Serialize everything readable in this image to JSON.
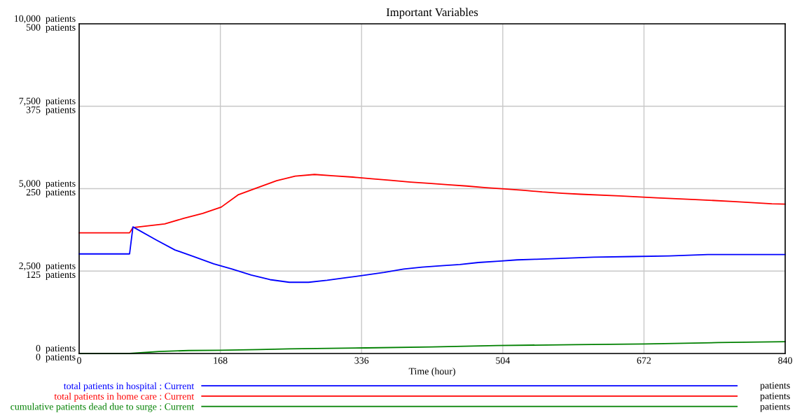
{
  "chart_data": {
    "type": "line",
    "title": "Important Variables",
    "xlabel": "Time (hour)",
    "xlim": [
      0,
      840
    ],
    "xticks": [
      0,
      168,
      336,
      504,
      672,
      840
    ],
    "ylim": [
      0,
      10000
    ],
    "yticks": [
      {
        "value": 0,
        "label": "0  patients"
      },
      {
        "value": 2500,
        "label": "2,500  patients"
      },
      {
        "value": 5000,
        "label": "5,000  patients"
      },
      {
        "value": 7500,
        "label": "7,500  patients"
      },
      {
        "value": 10000,
        "label": "10,000  patients"
      }
    ],
    "y2lim": [
      0,
      500
    ],
    "y2ticks": [
      {
        "value": 0,
        "label": "0  patients"
      },
      {
        "value": 125,
        "label": "125  patients"
      },
      {
        "value": 250,
        "label": "250  patients"
      },
      {
        "value": 375,
        "label": "375  patients"
      },
      {
        "value": 500,
        "label": "500  patients"
      }
    ],
    "grid": true,
    "legend": "bottom",
    "line_style": "solid",
    "annotations": [
      "patients",
      "patients",
      "patients"
    ],
    "series": [
      {
        "name": "total patients in hospital : Current",
        "color": "#0000ff",
        "axis": "y2",
        "x": [
          0,
          60,
          64,
          92,
          114,
          136.5,
          160,
          182,
          204.6,
          227,
          250,
          273,
          295,
          318,
          341,
          363,
          386,
          408,
          431,
          453,
          475,
          499,
          521,
          544,
          567,
          612,
          658,
          702,
          748,
          794,
          840
        ],
        "values": [
          151,
          151,
          192,
          172,
          157,
          147,
          136,
          128,
          119,
          112,
          108,
          108,
          111,
          115,
          119,
          123,
          128,
          131,
          133,
          135,
          138,
          140,
          142,
          143,
          144,
          146,
          147,
          148,
          150,
          150,
          150
        ]
      },
      {
        "name": "total patients in home care : Current",
        "color": "#ff0000",
        "axis": "y",
        "x": [
          0,
          60,
          64,
          101.8,
          124.5,
          147,
          169,
          189,
          211,
          235,
          257,
          280,
          302,
          325.6,
          348,
          371,
          394,
          416,
          438.6,
          461,
          484,
          506,
          529,
          551,
          575,
          597,
          643,
          687,
          733,
          778,
          824,
          840
        ],
        "values": [
          3660,
          3660,
          3820,
          3930,
          4100,
          4250,
          4440,
          4810,
          5020,
          5240,
          5380,
          5430,
          5390,
          5350,
          5300,
          5250,
          5200,
          5160,
          5120,
          5080,
          5030,
          4990,
          4950,
          4900,
          4860,
          4830,
          4780,
          4720,
          4670,
          4610,
          4540,
          4530
        ]
      },
      {
        "name": "cumulative patients dead due to surge : Current",
        "color": "#008000",
        "axis": "y",
        "x": [
          0,
          60,
          95,
          130,
          168,
          214,
          250,
          341,
          420,
          497,
          590,
          673,
          760,
          840
        ],
        "values": [
          0,
          0,
          60,
          90,
          100,
          120,
          140,
          170,
          200,
          240,
          270,
          290,
          330,
          360
        ]
      }
    ]
  }
}
